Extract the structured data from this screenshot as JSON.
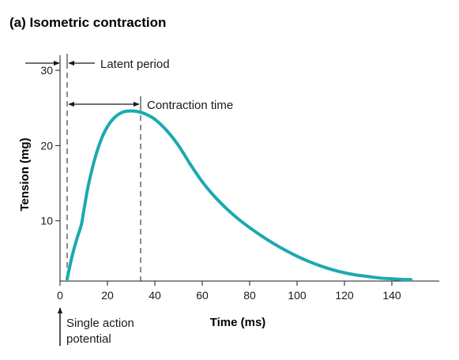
{
  "chart_data": {
    "type": "line",
    "title": "(a) Isometric contraction",
    "xlabel": "Time (ms)",
    "ylabel": "Tension (mg)",
    "xlim": [
      0,
      160
    ],
    "ylim": [
      2,
      32
    ],
    "x_ticks": [
      0,
      20,
      40,
      60,
      80,
      100,
      120,
      140
    ],
    "y_ticks": [
      10,
      20,
      30
    ],
    "grid": false,
    "series": [
      {
        "color": "#1aaab0",
        "x": [
          3,
          5,
          7,
          9,
          10,
          12,
          15,
          18,
          21,
          24,
          27,
          30,
          33,
          36,
          40,
          45,
          50,
          55,
          60,
          65,
          70,
          75,
          80,
          85,
          90,
          95,
          100,
          105,
          110,
          115,
          120,
          125,
          130,
          135,
          140,
          145,
          148
        ],
        "y": [
          2.3,
          5.2,
          7.5,
          9.5,
          11.3,
          14.8,
          18.6,
          21.3,
          23.0,
          24.0,
          24.5,
          24.6,
          24.5,
          24.2,
          23.5,
          22.0,
          20.0,
          17.5,
          15.2,
          13.3,
          11.7,
          10.3,
          9.1,
          8.0,
          7.0,
          6.1,
          5.3,
          4.6,
          4.0,
          3.5,
          3.1,
          2.8,
          2.6,
          2.4,
          2.3,
          2.2,
          2.2
        ]
      }
    ],
    "annotations": {
      "latent_period": {
        "label": "Latent period",
        "start": 0,
        "end": 3
      },
      "contraction_time": {
        "label": "Contraction time",
        "start": 3,
        "end": 34
      },
      "stimulus": {
        "label_line1": "Single action",
        "label_line2": "potential",
        "x": 0
      }
    }
  },
  "colors": {
    "curve": "#1aaab0",
    "text": "#1a1a1a"
  }
}
